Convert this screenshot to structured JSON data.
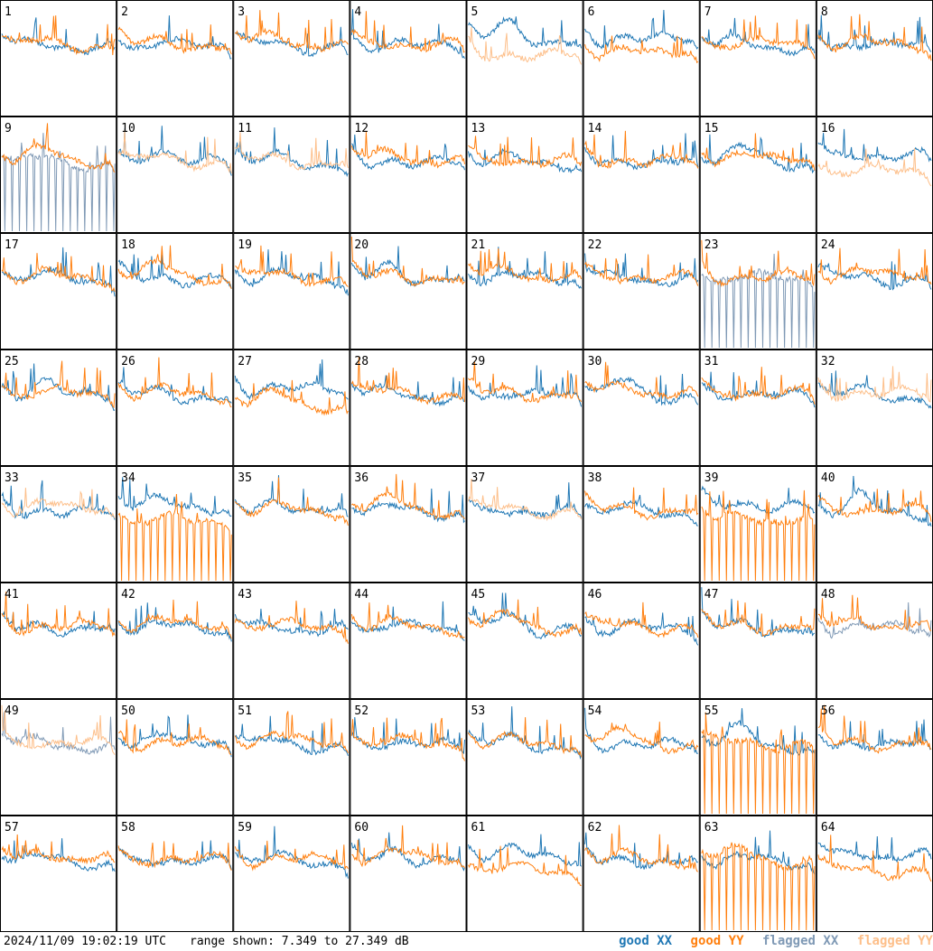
{
  "chart_data": {
    "type": "line",
    "panel_labels": [
      "1",
      "2",
      "3",
      "4",
      "5",
      "6",
      "7",
      "8",
      "9",
      "10",
      "11",
      "12",
      "13",
      "14",
      "15",
      "16",
      "17",
      "18",
      "19",
      "20",
      "21",
      "22",
      "23",
      "24",
      "25",
      "26",
      "27",
      "28",
      "29",
      "30",
      "31",
      "32",
      "33",
      "34",
      "35",
      "36",
      "37",
      "38",
      "39",
      "40",
      "41",
      "42",
      "43",
      "44",
      "45",
      "46",
      "47",
      "48",
      "49",
      "50",
      "51",
      "52",
      "53",
      "54",
      "55",
      "56",
      "57",
      "58",
      "59",
      "60",
      "61",
      "62",
      "63",
      "64"
    ],
    "grid_rows": 8,
    "grid_cols": 8,
    "y_range_db": [
      7.349,
      27.349
    ],
    "series": [
      {
        "name": "good XX",
        "color": "#1f77b4"
      },
      {
        "name": "good YY",
        "color": "#ff7f0e"
      },
      {
        "name": "flagged XX",
        "color": "#7f99b5"
      },
      {
        "name": "flagged YY",
        "color": "#fdbf8a"
      }
    ],
    "flagged_xx_panels": [
      9,
      23,
      48,
      49
    ],
    "flagged_yy_panels": [
      5,
      10,
      11,
      16,
      32,
      33,
      37,
      49
    ],
    "xx_dominant_panels": [
      5,
      6,
      16,
      27,
      34,
      39,
      61,
      64
    ],
    "dropout_panels": [
      9,
      23,
      34,
      39,
      55,
      63
    ]
  },
  "footer": {
    "timestamp": "2024/11/09 19:02:19 UTC",
    "range_text": "range shown: 7.349 to 27.349 dB"
  }
}
